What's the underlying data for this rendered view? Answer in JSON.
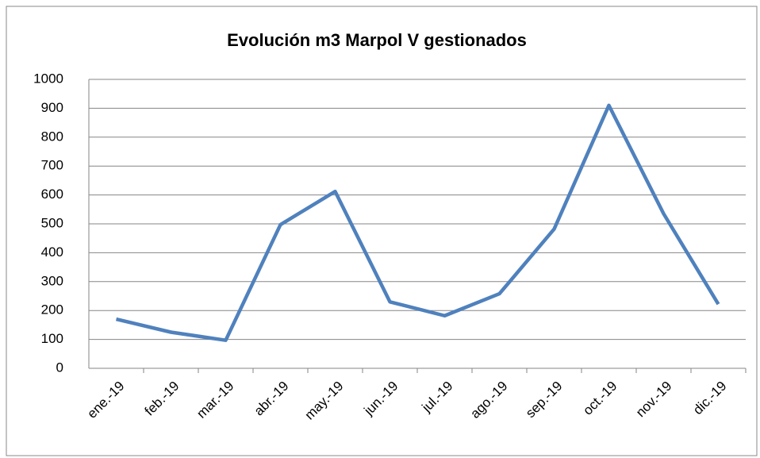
{
  "chart_data": {
    "type": "line",
    "title": "Evolución m3 Marpol V gestionados",
    "categories": [
      "ene.-19",
      "feb.-19",
      "mar.-19",
      "abr.-19",
      "may.-19",
      "jun.-19",
      "jul.-19",
      "ago.-19",
      "sep.-19",
      "oct.-19",
      "nov.-19",
      "dic.-19"
    ],
    "series": [
      {
        "name": "Marpol V",
        "color": "#4f81bd",
        "values": [
          170,
          125,
          97,
          497,
          612,
          230,
          182,
          258,
          482,
          910,
          535,
          222
        ]
      }
    ],
    "ylim": [
      0,
      1000
    ],
    "yticks": [
      0,
      100,
      200,
      300,
      400,
      500,
      600,
      700,
      800,
      900,
      1000
    ],
    "grid": true,
    "legend": false
  }
}
